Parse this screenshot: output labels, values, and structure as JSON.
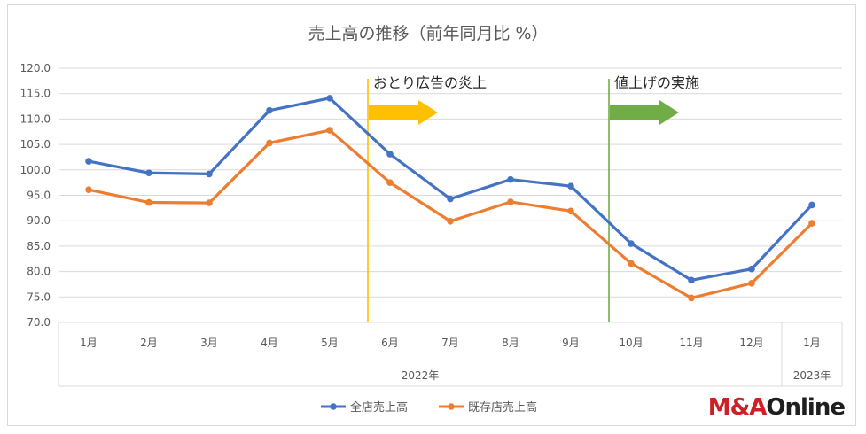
{
  "chart_data": {
    "type": "line",
    "title": "売上高の推移（前年同月比 %）",
    "categories": [
      "1月",
      "2月",
      "3月",
      "4月",
      "5月",
      "6月",
      "7月",
      "8月",
      "9月",
      "10月",
      "11月",
      "12月",
      "1月"
    ],
    "year_groups": [
      {
        "label": "2022年",
        "from": 0,
        "to": 11
      },
      {
        "label": "2023年",
        "from": 12,
        "to": 12
      }
    ],
    "ylim": [
      70,
      120
    ],
    "y_ticks": [
      "70.0",
      "75.0",
      "80.0",
      "85.0",
      "90.0",
      "95.0",
      "100.0",
      "105.0",
      "110.0",
      "115.0",
      "120.0"
    ],
    "grid": true,
    "legend_position": "bottom",
    "series": [
      {
        "name": "全店売上高",
        "color": "#4472c4",
        "values": [
          101.7,
          99.4,
          99.2,
          111.7,
          114.1,
          103.1,
          94.3,
          98.1,
          96.8,
          85.5,
          78.3,
          80.5,
          93.1
        ]
      },
      {
        "name": "既存店売上高",
        "color": "#ed7d31",
        "values": [
          96.1,
          93.6,
          93.5,
          105.3,
          107.8,
          97.5,
          89.9,
          93.7,
          91.9,
          81.6,
          74.8,
          77.7,
          89.5
        ]
      }
    ],
    "annotations": [
      {
        "text": "おとり広告の炎上",
        "at_index": 5,
        "line_color": "#ffc000",
        "arrow_color": "#ffc000"
      },
      {
        "text": "値上げの実施",
        "at_index": 9,
        "line_color": "#70ad47",
        "arrow_color": "#70ad47"
      }
    ]
  },
  "brand": {
    "part1": "M&A",
    "part2": "Online"
  }
}
